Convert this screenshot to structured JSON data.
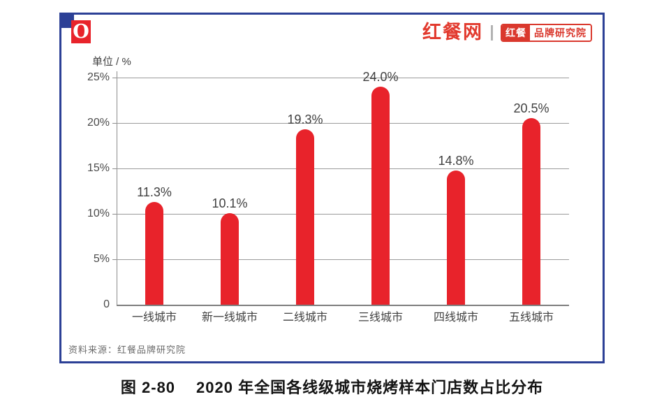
{
  "header": {
    "logo_o": "O",
    "brand": "红餐网",
    "badge_left": "红餐",
    "badge_right": "品牌研究院"
  },
  "chart_data": {
    "type": "bar",
    "title": "",
    "unit_label": "单位 / %",
    "categories": [
      "一线城市",
      "新一线城市",
      "二线城市",
      "三线城市",
      "四线城市",
      "五线城市"
    ],
    "values": [
      11.3,
      10.1,
      19.3,
      24.0,
      14.8,
      20.5
    ],
    "value_labels": [
      "11.3%",
      "10.1%",
      "19.3%",
      "24.0%",
      "14.8%",
      "20.5%"
    ],
    "y_ticks": [
      "25%",
      "20%",
      "15%",
      "10%",
      "5%",
      "0"
    ],
    "ylim": [
      0,
      25
    ],
    "grid": true,
    "legend": "none",
    "bar_color": "#e8232b"
  },
  "source": "资料来源：红餐品牌研究院",
  "caption": {
    "prefix": "图 2-80",
    "title": "2020 年全国各线级城市烧烤样本门店数占比分布"
  },
  "colors": {
    "frame_blue": "#2c4096",
    "bar_red": "#e8232b",
    "badge_red": "#da382d",
    "gridline_gray": "#9b9b9b"
  }
}
